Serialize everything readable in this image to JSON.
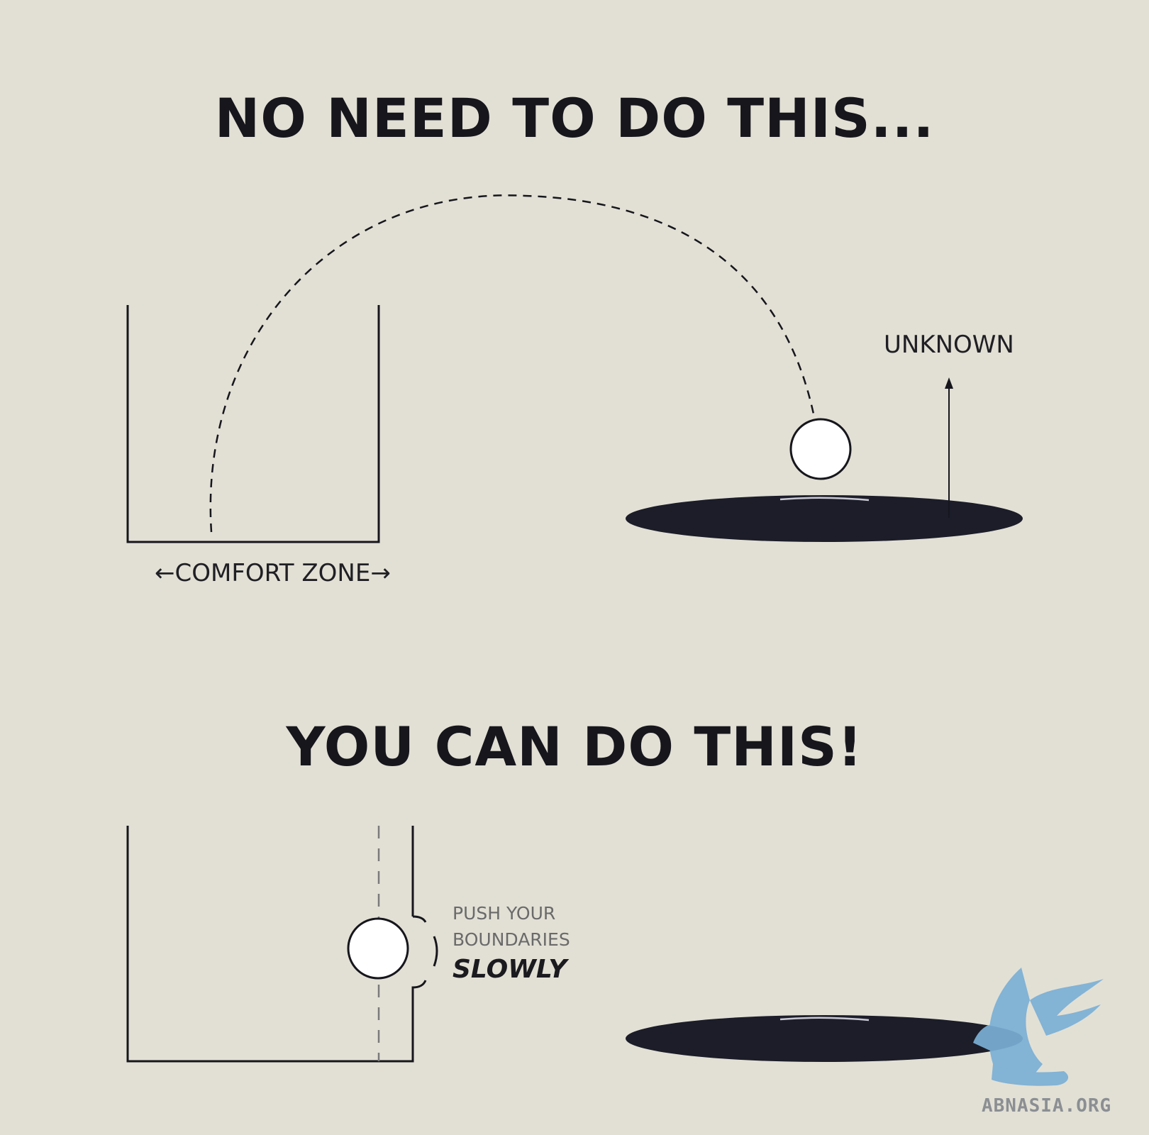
{
  "headings": {
    "top": "NO NEED TO DO THIS...",
    "bottom": "YOU CAN DO THIS!"
  },
  "labels": {
    "comfort_zone": "←COMFORT ZONE→",
    "unknown": "UNKNOWN",
    "push_line1": "PUSH YOUR",
    "push_line2": "BOUNDARIES",
    "push_line3": "SLOWLY"
  },
  "watermark": {
    "text": "ABNASIA.ORG",
    "icon": "winged-lion-logo"
  },
  "colors": {
    "background": "#e2e0d5",
    "ink": "#16161c",
    "hole": "#1c1d29",
    "logo": "#7bb0d6"
  }
}
